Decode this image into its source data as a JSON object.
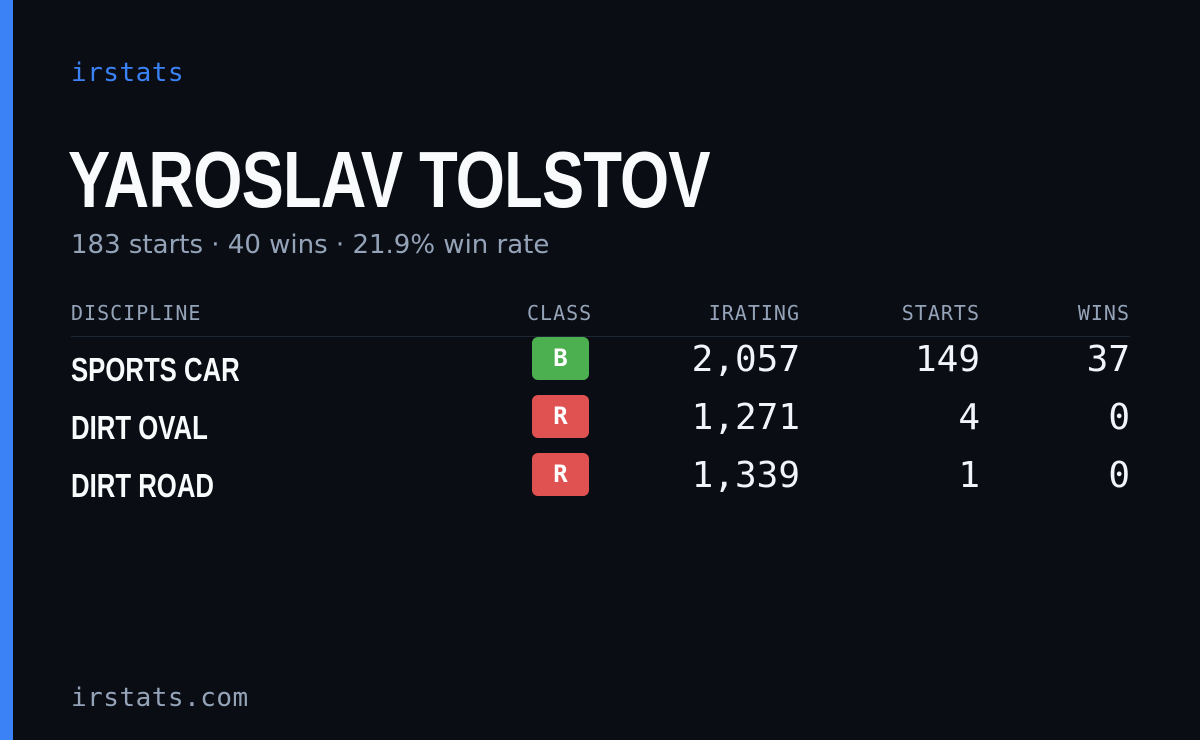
{
  "brand": "irstats",
  "driver": {
    "name": "YAROSLAV TOLSTOV",
    "summary": "183 starts · 40 wins · 21.9% win rate"
  },
  "table": {
    "headers": {
      "discipline": "DISCIPLINE",
      "class": "CLASS",
      "irating": "IRATING",
      "starts": "STARTS",
      "wins": "WINS"
    },
    "rows": [
      {
        "discipline": "SPORTS CAR",
        "class": "B",
        "class_color": "#4caf50",
        "irating": "2,057",
        "starts": "149",
        "wins": "37"
      },
      {
        "discipline": "DIRT OVAL",
        "class": "R",
        "class_color": "#e05252",
        "irating": "1,271",
        "starts": "4",
        "wins": "0"
      },
      {
        "discipline": "DIRT ROAD",
        "class": "R",
        "class_color": "#e05252",
        "irating": "1,339",
        "starts": "1",
        "wins": "0"
      }
    ]
  },
  "footer": {
    "url": "irstats.com"
  },
  "colors": {
    "accent": "#3b82f6",
    "background": "#0a0d14"
  }
}
